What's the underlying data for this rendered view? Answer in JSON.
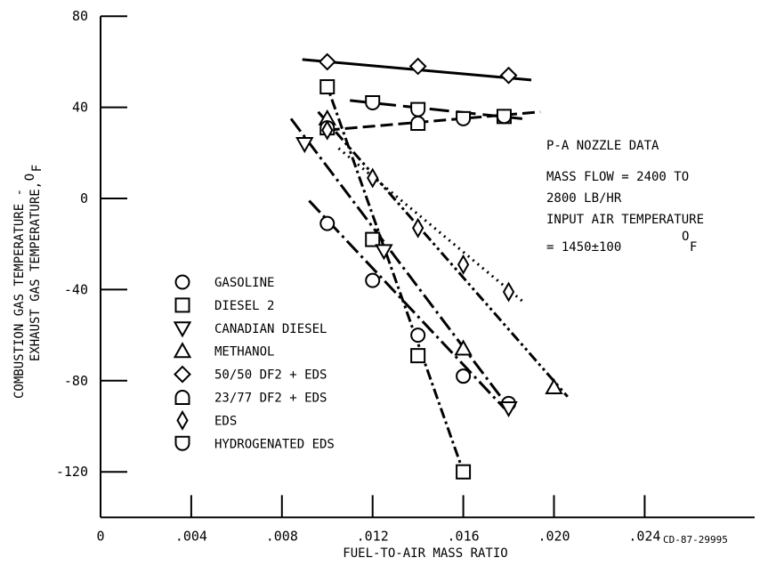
{
  "chart_data": {
    "type": "scatter",
    "title": "",
    "xlabel": "FUEL-TO-AIR MASS RATIO",
    "ylabel_lines": [
      "COMBUSTION GAS TEMPERATURE -",
      "EXHAUST GAS TEMPERATURE,"
    ],
    "ylabel_unit": "F",
    "ylabel_unit_sup": "O",
    "xlim": [
      0,
      0.028
    ],
    "ylim": [
      -140,
      80
    ],
    "xticks": [
      0,
      0.004,
      0.008,
      0.012,
      0.016,
      0.02,
      0.024
    ],
    "xtick_labels": [
      "0",
      ".004",
      ".008",
      ".012",
      ".016",
      ".020",
      ".024"
    ],
    "yticks": [
      -120,
      -80,
      -40,
      0,
      40,
      80
    ],
    "ytick_labels": [
      "-120",
      "-80",
      "-40",
      "0",
      "40",
      "80"
    ],
    "grid": false,
    "legend_position": "lower-left",
    "series": [
      {
        "name": "GASOLINE",
        "marker": "circle",
        "line": "long-dash-dot",
        "x": [
          0.01,
          0.012,
          0.014,
          0.016,
          0.018
        ],
        "y": [
          -11,
          -36,
          -60,
          -78,
          -90
        ],
        "fit": {
          "x": [
            0.0092,
            0.0178
          ],
          "y": [
            -1,
            -92
          ]
        }
      },
      {
        "name": "DIESEL 2",
        "marker": "square",
        "line": "dash-dot",
        "x": [
          0.01,
          0.012,
          0.014,
          0.016
        ],
        "y": [
          49,
          -18,
          -69,
          -120
        ],
        "fit": {
          "x": [
            0.0099,
            0.016
          ],
          "y": [
            52,
            -120
          ]
        }
      },
      {
        "name": "CANADIAN DIESEL",
        "marker": "triangle-down",
        "line": "long-dash-dot",
        "x": [
          0.009,
          0.0125,
          0.018
        ],
        "y": [
          24,
          -23,
          -92
        ],
        "fit": {
          "x": [
            0.0084,
            0.0181
          ],
          "y": [
            35,
            -93
          ]
        }
      },
      {
        "name": "METHANOL",
        "marker": "triangle-up",
        "line": "dash-dot-dot",
        "x": [
          0.01,
          0.016,
          0.02
        ],
        "y": [
          35,
          -66,
          -83
        ],
        "fit": {
          "x": [
            0.0096,
            0.0206
          ],
          "y": [
            38,
            -87
          ]
        }
      },
      {
        "name": "50/50 DF2 + EDS",
        "marker": "diamond",
        "line": "solid",
        "x": [
          0.01,
          0.014,
          0.018
        ],
        "y": [
          60,
          58,
          54
        ],
        "fit": {
          "x": [
            0.0089,
            0.019
          ],
          "y": [
            61,
            52
          ]
        }
      },
      {
        "name": "23/77 DF2 + EDS",
        "marker": "half-circle-top",
        "line": "dashed",
        "x": [
          0.01,
          0.014,
          0.0178
        ],
        "y": [
          31,
          33,
          36
        ],
        "fit": {
          "x": [
            0.01,
            0.0194
          ],
          "y": [
            30,
            38
          ]
        }
      },
      {
        "name": "EDS",
        "marker": "thin-diamond",
        "line": "dotted",
        "x": [
          0.01,
          0.012,
          0.014,
          0.016,
          0.018
        ],
        "y": [
          30,
          9,
          -13,
          -29,
          -41
        ],
        "fit": {
          "x": [
            0.0105,
            0.0186
          ],
          "y": [
            22,
            -45
          ]
        }
      },
      {
        "name": "HYDROGENATED EDS",
        "marker": "half-circle-bottom",
        "line": "long-dash",
        "x": [
          0.012,
          0.014,
          0.016,
          0.0178
        ],
        "y": [
          42,
          39,
          35,
          36
        ],
        "fit": {
          "x": [
            0.011,
            0.0186
          ],
          "y": [
            43,
            35
          ]
        }
      }
    ],
    "annotation_lines": [
      "P-A NOZZLE DATA",
      "MASS FLOW = 2400 TO",
      "2800 LB/HR",
      "INPUT AIR TEMPERATURE",
      "= 1450±100"
    ],
    "annotation_unit": "F",
    "annotation_unit_sup": "O",
    "caption": "CD-87-29995"
  }
}
